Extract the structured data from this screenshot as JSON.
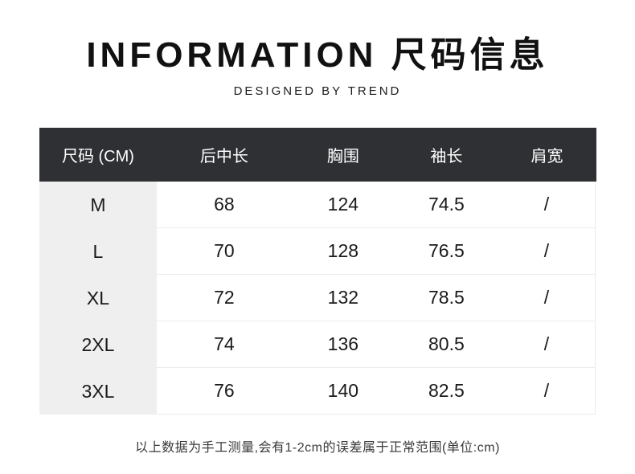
{
  "title": {
    "full": "INFORMATION 尺码信息"
  },
  "subtitle": "DESIGNED BY TREND",
  "note": "以上数据为手工测量,会有1-2cm的误差属于正常范围(单位:cm)",
  "colors": {
    "header_bg": "#2f3034",
    "header_text": "#ffffff",
    "size_column_bg": "#efefef",
    "divider": "#ececec",
    "body_text": "#1a1a1a",
    "title_text": "#111111",
    "page_bg": "#ffffff"
  },
  "chart_data": {
    "type": "table",
    "title": "INFORMATION 尺码信息",
    "subtitle": "DESIGNED BY TREND",
    "unit": "cm",
    "columns": [
      "尺码 (CM)",
      "后中长",
      "胸围",
      "袖长",
      "肩宽"
    ],
    "rows": [
      [
        "M",
        "68",
        "124",
        "74.5",
        "/"
      ],
      [
        "L",
        "70",
        "128",
        "76.5",
        "/"
      ],
      [
        "XL",
        "72",
        "132",
        "78.5",
        "/"
      ],
      [
        "2XL",
        "74",
        "136",
        "80.5",
        "/"
      ],
      [
        "3XL",
        "76",
        "140",
        "82.5",
        "/"
      ]
    ],
    "note": "以上数据为手工测量,会有1-2cm的误差属于正常范围(单位:cm)"
  }
}
